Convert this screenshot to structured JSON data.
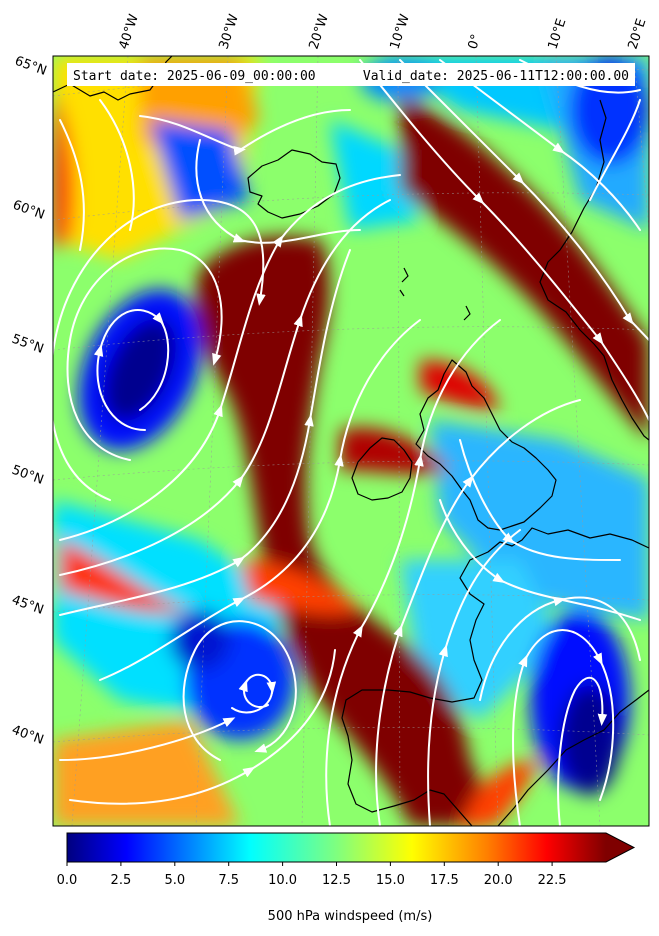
{
  "header": {
    "start_label": "Start date: 2025-06-09_00:00:00",
    "valid_label": "Valid_date: 2025-06-11T12:00:00.00"
  },
  "map": {
    "lon_labels": [
      "40°W",
      "30°W",
      "20°W",
      "10°W",
      "0°",
      "10°E",
      "20°E"
    ],
    "lat_labels": [
      "65°N",
      "60°N",
      "55°N",
      "50°N",
      "45°N",
      "40°N"
    ],
    "features": {
      "streamline_color": "#ffffff",
      "coastline_color": "#000000",
      "gridline_color": "#bdbdbd",
      "jet_stream_color": "#7f0000"
    }
  },
  "colorbar": {
    "title": "500 hPa windspeed (m/s)",
    "ticks": [
      "0.0",
      "2.5",
      "5.0",
      "7.5",
      "10.0",
      "12.5",
      "15.0",
      "17.5",
      "20.0",
      "22.5"
    ],
    "min": 0,
    "max": 25,
    "extend": "max",
    "colormap": "jet",
    "colors": [
      "#00007f",
      "#0000ff",
      "#007fff",
      "#00ffff",
      "#7fff7f",
      "#ffff00",
      "#ff7f00",
      "#ff0000",
      "#7f0000"
    ]
  }
}
